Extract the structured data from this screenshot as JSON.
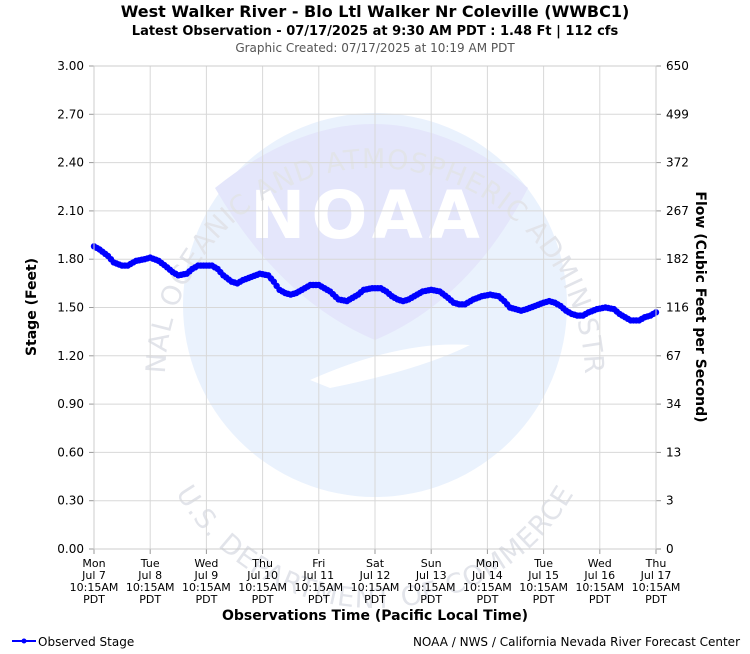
{
  "chart_data": {
    "type": "line",
    "title": "West Walker River - Blo Ltl Walker Nr Coleville (WWBC1)",
    "subtitle": "Latest Observation - 07/17/2025 at 9:30 AM PDT : 1.48 Ft | 112 cfs",
    "created": "Graphic Created: 07/17/2025 at 10:19 AM PDT",
    "ylabel": "Stage (Feet)",
    "y2label": "Flow (Cubic Feet per Second)",
    "xlabel": "Observations Time (Pacific Local Time)",
    "ylim": [
      0,
      3
    ],
    "yticks": [
      "0.00",
      "0.30",
      "0.60",
      "0.90",
      "1.20",
      "1.50",
      "1.80",
      "2.10",
      "2.40",
      "2.70",
      "3.00"
    ],
    "y2ticks": [
      "0",
      "3",
      "13",
      "34",
      "67",
      "116",
      "182",
      "267",
      "372",
      "499",
      "650"
    ],
    "xticks": [
      [
        "Mon",
        "Jul 7",
        "10:15AM",
        "PDT"
      ],
      [
        "Tue",
        "Jul 8",
        "10:15AM",
        "PDT"
      ],
      [
        "Wed",
        "Jul 9",
        "10:15AM",
        "PDT"
      ],
      [
        "Thu",
        "Jul 10",
        "10:15AM",
        "PDT"
      ],
      [
        "Fri",
        "Jul 11",
        "10:15AM",
        "PDT"
      ],
      [
        "Sat",
        "Jul 12",
        "10:15AM",
        "PDT"
      ],
      [
        "Sun",
        "Jul 13",
        "10:15AM",
        "PDT"
      ],
      [
        "Mon",
        "Jul 14",
        "10:15AM",
        "PDT"
      ],
      [
        "Tue",
        "Jul 15",
        "10:15AM",
        "PDT"
      ],
      [
        "Wed",
        "Jul 16",
        "10:15AM",
        "PDT"
      ],
      [
        "Thu",
        "Jul 17",
        "10:15AM",
        "PDT"
      ]
    ],
    "grid": true,
    "legend_position": "bottom-left",
    "series": [
      {
        "name": "Observed Stage",
        "color": "#0000ff",
        "points": [
          [
            0,
            1.88
          ],
          [
            0.1,
            1.86
          ],
          [
            0.25,
            1.82
          ],
          [
            0.35,
            1.78
          ],
          [
            0.5,
            1.76
          ],
          [
            0.6,
            1.76
          ],
          [
            0.75,
            1.79
          ],
          [
            0.9,
            1.8
          ],
          [
            1.0,
            1.81
          ],
          [
            1.15,
            1.79
          ],
          [
            1.3,
            1.75
          ],
          [
            1.4,
            1.72
          ],
          [
            1.5,
            1.7
          ],
          [
            1.65,
            1.71
          ],
          [
            1.75,
            1.74
          ],
          [
            1.85,
            1.76
          ],
          [
            2.0,
            1.76
          ],
          [
            2.1,
            1.76
          ],
          [
            2.2,
            1.74
          ],
          [
            2.3,
            1.7
          ],
          [
            2.45,
            1.66
          ],
          [
            2.55,
            1.65
          ],
          [
            2.65,
            1.67
          ],
          [
            2.8,
            1.69
          ],
          [
            2.95,
            1.71
          ],
          [
            3.1,
            1.7
          ],
          [
            3.2,
            1.66
          ],
          [
            3.3,
            1.61
          ],
          [
            3.4,
            1.59
          ],
          [
            3.5,
            1.58
          ],
          [
            3.6,
            1.59
          ],
          [
            3.7,
            1.61
          ],
          [
            3.85,
            1.64
          ],
          [
            4.0,
            1.64
          ],
          [
            4.1,
            1.62
          ],
          [
            4.2,
            1.6
          ],
          [
            4.35,
            1.55
          ],
          [
            4.5,
            1.54
          ],
          [
            4.6,
            1.56
          ],
          [
            4.7,
            1.58
          ],
          [
            4.8,
            1.61
          ],
          [
            4.95,
            1.62
          ],
          [
            5.1,
            1.62
          ],
          [
            5.2,
            1.6
          ],
          [
            5.3,
            1.57
          ],
          [
            5.4,
            1.55
          ],
          [
            5.5,
            1.54
          ],
          [
            5.6,
            1.55
          ],
          [
            5.75,
            1.58
          ],
          [
            5.85,
            1.6
          ],
          [
            6.0,
            1.61
          ],
          [
            6.15,
            1.6
          ],
          [
            6.3,
            1.56
          ],
          [
            6.4,
            1.53
          ],
          [
            6.5,
            1.52
          ],
          [
            6.6,
            1.52
          ],
          [
            6.75,
            1.55
          ],
          [
            6.9,
            1.57
          ],
          [
            7.05,
            1.58
          ],
          [
            7.2,
            1.57
          ],
          [
            7.3,
            1.54
          ],
          [
            7.4,
            1.5
          ],
          [
            7.5,
            1.49
          ],
          [
            7.6,
            1.48
          ],
          [
            7.7,
            1.49
          ],
          [
            7.85,
            1.51
          ],
          [
            8.0,
            1.53
          ],
          [
            8.1,
            1.54
          ],
          [
            8.2,
            1.53
          ],
          [
            8.3,
            1.51
          ],
          [
            8.4,
            1.48
          ],
          [
            8.5,
            1.46
          ],
          [
            8.6,
            1.45
          ],
          [
            8.7,
            1.45
          ],
          [
            8.8,
            1.47
          ],
          [
            8.95,
            1.49
          ],
          [
            9.1,
            1.5
          ],
          [
            9.25,
            1.49
          ],
          [
            9.35,
            1.46
          ],
          [
            9.45,
            1.44
          ],
          [
            9.55,
            1.42
          ],
          [
            9.7,
            1.42
          ],
          [
            9.8,
            1.44
          ],
          [
            9.9,
            1.45
          ],
          [
            10.0,
            1.47
          ]
        ]
      }
    ],
    "watermark": {
      "logo_text": "NOAA",
      "ring_top": "NATIONAL OCEANIC AND ATMOSPHERIC ADMINISTRATION",
      "ring_bottom": "U.S. DEPARTMENT OF COMMERCE"
    }
  },
  "footer": {
    "legend_label": "Observed Stage",
    "credit": "NOAA / NWS / California Nevada River Forecast Center"
  }
}
